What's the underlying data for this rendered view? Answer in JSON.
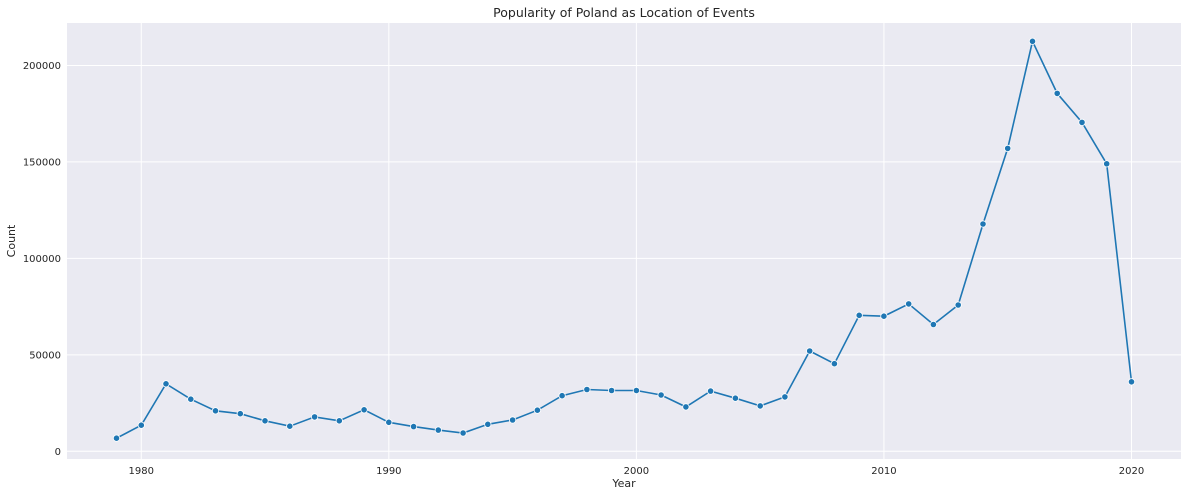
{
  "chart_data": {
    "type": "line",
    "title": "Popularity of Poland as Location of Events",
    "xlabel": "Year",
    "ylabel": "Count",
    "xlim": [
      1977,
      2022
    ],
    "ylim": [
      -4000,
      222000
    ],
    "x_ticks": [
      1980,
      1990,
      2000,
      2010,
      2020
    ],
    "x_tick_labels": [
      "1980",
      "1990",
      "2000",
      "2010",
      "2020"
    ],
    "y_ticks": [
      0,
      50000,
      100000,
      150000,
      200000
    ],
    "y_tick_labels": [
      "0",
      "50000",
      "100000",
      "150000",
      "200000"
    ],
    "grid": true,
    "background": "#EAEAF2",
    "grid_color": "#FFFFFF",
    "line_color": "#1F77B4",
    "marker": "circle",
    "x": [
      1979,
      1980,
      1981,
      1982,
      1983,
      1984,
      1985,
      1986,
      1987,
      1988,
      1989,
      1990,
      1991,
      1992,
      1993,
      1994,
      1995,
      1996,
      1997,
      1998,
      1999,
      2000,
      2001,
      2002,
      2003,
      2004,
      2005,
      2006,
      2007,
      2008,
      2009,
      2010,
      2011,
      2012,
      2013,
      2014,
      2015,
      2016,
      2017,
      2018,
      2019,
      2020
    ],
    "y": [
      6800,
      13500,
      35000,
      27000,
      21000,
      19500,
      15800,
      13000,
      17800,
      15800,
      21500,
      15000,
      12800,
      11000,
      9500,
      14000,
      16200,
      21300,
      28800,
      32000,
      31500,
      31500,
      29200,
      23000,
      31200,
      27500,
      23500,
      28200,
      52000,
      45400,
      70500,
      70000,
      76400,
      65700,
      75800,
      117800,
      157000,
      212500,
      185500,
      170500,
      149000,
      36000
    ]
  }
}
